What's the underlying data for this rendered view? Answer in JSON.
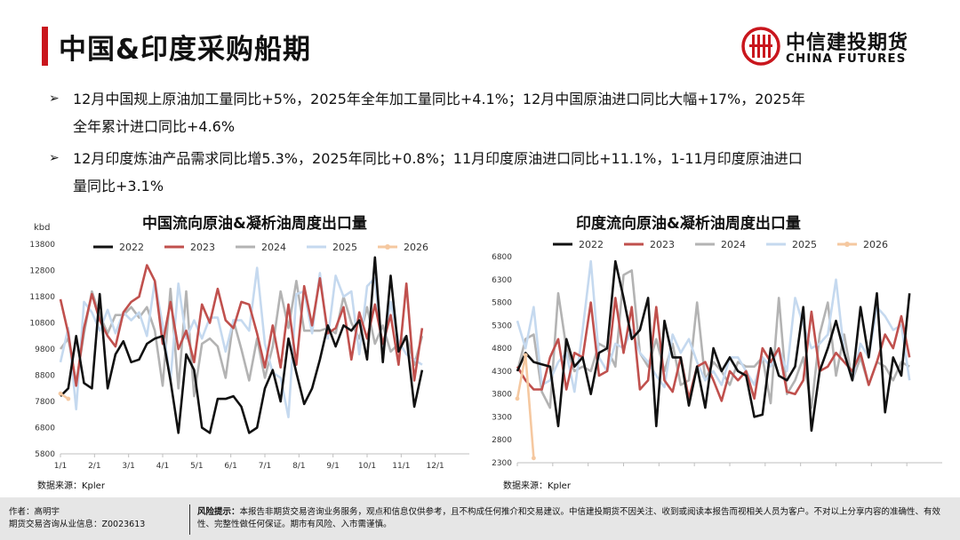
{
  "header": {
    "title": "中国&印度采购船期"
  },
  "logo": {
    "cn": "中信建投期货",
    "en": "CHINA FUTURES"
  },
  "bullets": [
    {
      "line1": "12月中国规上原油加工量同比+5%，2025年全年加工量同比+4.1%；12月中国原油进口同比大幅+17%，2025年",
      "line2": "全年累计进口同比+4.6%"
    },
    {
      "line1": "12月印度炼油产品需求同比增5.3%，2025年同比+0.8%；11月印度原油进口同比+11.1%，1-11月印度原油进口",
      "line2": "量同比+3.1%"
    }
  ],
  "footer": {
    "author": "作者：高明宇",
    "license": "期货交易咨询从业信息：Z0023613",
    "risk_label": "风险提示：",
    "risk_text": "本报告非期货交易咨询业务服务，观点和信息仅供参考，且不构成任何推介和交易建议。中信建投期货不因关注、收到或阅读本报告而视相关人员为客户。不对以上分享内容的准确性、有效性、完整性做任何保证。期市有风险、入市需谨慎。"
  },
  "colors": {
    "2022": "#111111",
    "2023": "#c0504d",
    "2024": "#b3b3b3",
    "2025": "#c5d9ef",
    "2026": "#f5c8a0",
    "brand": "#c9161d"
  },
  "chart_data": [
    {
      "type": "line",
      "title": "中国流向原油&凝析油周度出口量",
      "ylabel": "kbd",
      "source": "数据来源：Kpler",
      "ylim": [
        5800,
        13800
      ],
      "yticks": [
        5800,
        6800,
        7800,
        8800,
        9800,
        10800,
        11800,
        12800,
        13800
      ],
      "xticks": [
        "1/1",
        "2/1",
        "3/1",
        "4/1",
        "5/1",
        "6/1",
        "7/1",
        "8/1",
        "9/1",
        "10/1",
        "11/1",
        "12/1"
      ],
      "series": [
        {
          "name": "2022",
          "values": [
            8000,
            8300,
            10300,
            8500,
            8300,
            11900,
            8300,
            9600,
            10100,
            9300,
            9400,
            10000,
            10200,
            10300,
            8600,
            6600,
            9600,
            9000,
            6800,
            6600,
            7900,
            7900,
            8000,
            7600,
            6600,
            6800,
            8300,
            9000,
            7800,
            10200,
            8900,
            7700,
            8300,
            9400,
            10700,
            9900,
            10700,
            10500,
            10900,
            9400,
            13300,
            9300,
            12600,
            9700,
            10300,
            7600,
            9000
          ]
        },
        {
          "name": "2023",
          "values": [
            11700,
            10400,
            8400,
            10600,
            11900,
            10900,
            10300,
            9900,
            11200,
            11600,
            11800,
            13000,
            12400,
            10000,
            11600,
            9800,
            10500,
            9300,
            11500,
            10800,
            12100,
            10900,
            10600,
            11600,
            11500,
            10400,
            9100,
            10700,
            9100,
            11500,
            9200,
            12200,
            10700,
            12500,
            10400,
            10600,
            11400,
            9400,
            11200,
            10200,
            11500,
            10000,
            11100,
            9200,
            12300,
            8600,
            10600
          ]
        },
        {
          "name": "2024",
          "values": [
            9800,
            10200,
            8500,
            10400,
            12000,
            11100,
            10400,
            11100,
            11100,
            11400,
            11000,
            11400,
            10500,
            8400,
            12100,
            8300,
            12000,
            8000,
            10000,
            10200,
            9900,
            8700,
            10900,
            9800,
            8600,
            10200,
            8700,
            9900,
            12000,
            10600,
            12400,
            10500,
            10500,
            10500,
            10600,
            10400,
            11800,
            10800,
            10200,
            11400,
            10000,
            10700,
            9700,
            10000,
            10300,
            9200,
            10300
          ]
        },
        {
          "name": "2025",
          "values": [
            9300,
            10600,
            7500,
            11600,
            11200,
            10500,
            11300,
            10400,
            11200,
            10900,
            11200,
            10300,
            12400,
            10700,
            8600,
            12300,
            10200,
            10900,
            10200,
            11000,
            11000,
            9700,
            10900,
            10900,
            10500,
            12900,
            10000,
            8900,
            8700,
            7200,
            11900,
            12000,
            10400,
            12700,
            10200,
            12600,
            11800,
            12000,
            9600,
            12200,
            12500,
            9500,
            11600,
            10100,
            9600,
            9400,
            9200
          ]
        },
        {
          "name": "2026",
          "values": [
            8100,
            7900
          ]
        }
      ]
    },
    {
      "type": "line",
      "title": "印度流向原油&凝析油周度出口量",
      "ylabel": "",
      "source": "数据来源：Kpler",
      "ylim": [
        2300,
        6800
      ],
      "yticks": [
        2300,
        2800,
        3300,
        3800,
        4300,
        4800,
        5300,
        5800,
        6300,
        6800
      ],
      "xticks": [
        "1/1",
        "2/1",
        "3/1",
        "4/1",
        "5/1",
        "6/1",
        "7/1",
        "8/1",
        "9/1",
        "10/1",
        "11/1",
        "12/1"
      ],
      "series": [
        {
          "name": "2022",
          "values": [
            4300,
            4700,
            4500,
            4450,
            4400,
            3100,
            5000,
            4400,
            4600,
            3800,
            4700,
            4800,
            6700,
            5900,
            5000,
            5200,
            5900,
            3100,
            5400,
            4600,
            4600,
            3550,
            4400,
            3500,
            4800,
            4300,
            4600,
            4300,
            4200,
            3300,
            3350,
            4800,
            4200,
            4100,
            4400,
            5700,
            3000,
            4300,
            4800,
            5400,
            4700,
            4100,
            5700,
            4600,
            6000,
            3400,
            4600,
            4200,
            6000
          ]
        },
        {
          "name": "2023",
          "values": [
            4400,
            4100,
            3900,
            3900,
            4600,
            5000,
            3900,
            4700,
            4600,
            5800,
            4200,
            4300,
            5900,
            4700,
            5700,
            3900,
            4100,
            5700,
            4100,
            3850,
            4600,
            3700,
            4400,
            4500,
            4100,
            3650,
            4300,
            4100,
            4300,
            3700,
            4800,
            4500,
            4800,
            3850,
            3800,
            4100,
            5600,
            4300,
            4400,
            4700,
            4500,
            4300,
            4700,
            4000,
            4500,
            5100,
            4800,
            5500,
            4600
          ]
        },
        {
          "name": "2024",
          "values": [
            4300,
            5000,
            5100,
            3850,
            3500,
            6000,
            4800,
            4300,
            4400,
            4300,
            4900,
            4800,
            4400,
            6400,
            6500,
            4700,
            4400,
            5000,
            4300,
            4900,
            4000,
            4100,
            5800,
            4100,
            4500,
            4300,
            4000,
            4500,
            4400,
            4400,
            4600,
            3600,
            5900,
            3800,
            4100,
            4600,
            3500,
            5100,
            5800,
            4200,
            5100,
            4100,
            4600,
            4000,
            4500,
            4400,
            4100,
            4500,
            4400
          ]
        },
        {
          "name": "2025",
          "values": [
            5400,
            4800,
            5700,
            4000,
            4100,
            4500,
            4700,
            3850,
            5200,
            6700,
            4600,
            4300,
            4900,
            4800,
            5200,
            4700,
            4500,
            4200,
            3950,
            5100,
            4700,
            5000,
            4500,
            4100,
            4300,
            4000,
            4600,
            4600,
            4300,
            4000,
            4600,
            4400,
            4800,
            4300,
            5900,
            5300,
            4800,
            4900,
            5100,
            6300,
            4700,
            4100,
            4900,
            4600,
            5700,
            5500,
            5200,
            5300,
            4100
          ]
        },
        {
          "name": "2026",
          "values": [
            3700,
            4650,
            2400
          ]
        }
      ]
    }
  ]
}
